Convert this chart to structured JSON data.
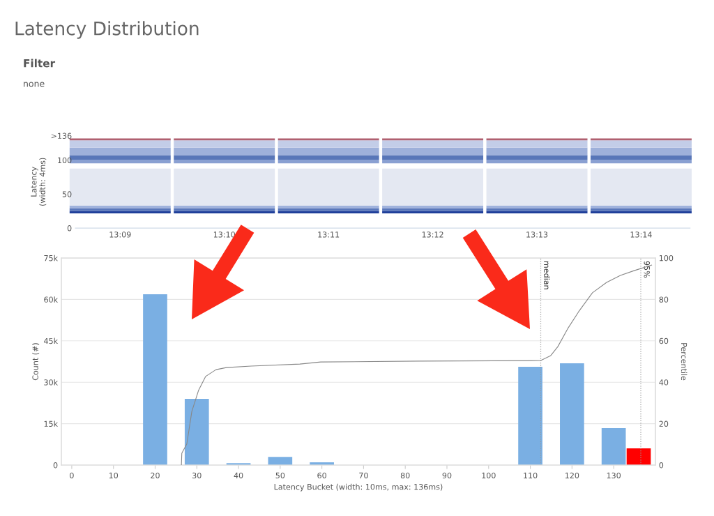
{
  "chart_data": [
    {
      "type": "heatmap",
      "title": "Latency Distribution",
      "annotations": [
        "Filter",
        "none"
      ],
      "ylabel": "Latency\n(width: 4ms)",
      "categories": [
        "13:09",
        "13:10",
        "13:11",
        "13:12",
        "13:13",
        "13:14"
      ],
      "ylim": [
        0,
        136
      ],
      "yticks": [
        0,
        50,
        100,
        {
          "value": 136,
          "label": ">136"
        }
      ]
    },
    {
      "type": "bar",
      "xlabel": "Latency Bucket (width: 10ms, max: 136ms)",
      "ylabel": "Count (#)",
      "y2label": "Percentile",
      "xlim": [
        -2.5,
        140
      ],
      "xticks": [
        0,
        10,
        20,
        30,
        40,
        50,
        60,
        70,
        80,
        90,
        100,
        110,
        120,
        130
      ],
      "ylim": [
        0,
        75000
      ],
      "yticks": [
        {
          "value": 0,
          "label": "0"
        },
        {
          "value": 15000,
          "label": "15k"
        },
        {
          "value": 30000,
          "label": "30k"
        },
        {
          "value": 45000,
          "label": "45k"
        },
        {
          "value": 60000,
          "label": "60k"
        },
        {
          "value": 75000,
          "label": "75k"
        }
      ],
      "y2lim": [
        0,
        100
      ],
      "y2ticks": [
        0,
        20,
        40,
        60,
        80,
        100
      ],
      "grid": "y",
      "legend": false,
      "series": [
        {
          "type": "bar",
          "x": [
            20,
            30,
            40,
            50,
            60,
            110,
            120,
            130,
            136
          ],
          "values": [
            61900,
            24000,
            700,
            3000,
            1000,
            35600,
            36900,
            13400,
            6100
          ],
          "colors": [
            "#7aafe3",
            "#7aafe3",
            "#7aafe3",
            "#7aafe3",
            "#7aafe3",
            "#7aafe3",
            "#7aafe3",
            "#7aafe3",
            "#ff0000"
          ]
        },
        {
          "type": "line",
          "axis": "y2",
          "color": "#888888",
          "marker": "none",
          "line_style": "solid",
          "x": [
            26.3,
            26.4,
            27.6,
            28.8,
            30.4,
            32.1,
            34.6,
            37.1,
            43,
            54.7,
            59.7,
            83.1,
            112.5,
            114.9,
            116.6,
            119.1,
            121.6,
            124.9,
            128.3,
            131.6,
            134.9,
            139.1
          ],
          "values": [
            0,
            5.7,
            10.2,
            25.9,
            36,
            42.8,
            46.1,
            47.1,
            47.8,
            48.8,
            49.8,
            50.2,
            50.5,
            52.9,
            57.2,
            66.3,
            74.1,
            83.2,
            88.2,
            91.6,
            93.9,
            96.6
          ]
        }
      ],
      "ref_lines": [
        {
          "axis": "x",
          "value": 112.5,
          "line_style": "dotted",
          "color": "#999999"
        },
        {
          "axis": "x",
          "value": 136.5,
          "line_style": "dotted",
          "color": "#999999"
        }
      ],
      "annotations": [
        {
          "text": "median",
          "x": 112.5,
          "y": 74000
        },
        {
          "text": "95%",
          "x": 136.5,
          "y": 74000
        }
      ]
    }
  ]
}
